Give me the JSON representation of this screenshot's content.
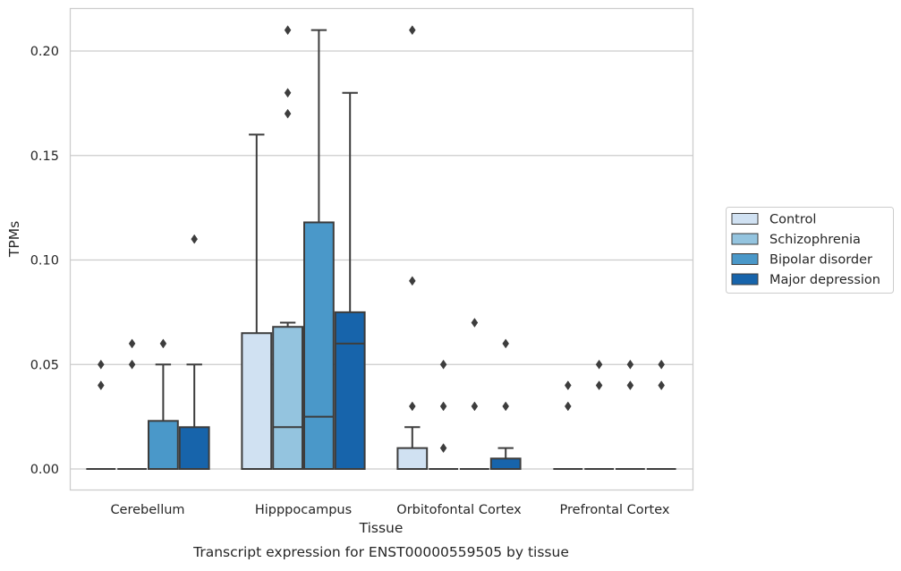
{
  "chart_data": {
    "type": "box",
    "title": "",
    "xlabel": "Tissue",
    "ylabel": "TPMs",
    "caption": "Transcript expression for ENST00000559505 by tissue",
    "ylim": [
      -0.01,
      0.22
    ],
    "yticks": [
      0.0,
      0.05,
      0.1,
      0.15,
      0.2
    ],
    "ytick_labels": [
      "0.00",
      "0.05",
      "0.10",
      "0.15",
      "0.20"
    ],
    "grid": "horizontal",
    "legend_position": "right",
    "categories": [
      "Cerebellum",
      "Hipppocampus",
      "Orbitofontal Cortex",
      "Prefrontal Cortex"
    ],
    "series": [
      {
        "name": "Control",
        "color": "#d0e1f2",
        "boxes": [
          {
            "q1": 0.0,
            "median": 0.0,
            "q3": 0.0,
            "whisker_low": 0.0,
            "whisker_high": 0.0,
            "outliers": [
              0.04,
              0.05
            ]
          },
          {
            "q1": 0.0,
            "median": 0.0,
            "q3": 0.065,
            "whisker_low": 0.0,
            "whisker_high": 0.16,
            "outliers": []
          },
          {
            "q1": 0.0,
            "median": 0.0,
            "q3": 0.01,
            "whisker_low": 0.0,
            "whisker_high": 0.02,
            "outliers": [
              0.03,
              0.09,
              0.21
            ]
          },
          {
            "q1": 0.0,
            "median": 0.0,
            "q3": 0.0,
            "whisker_low": 0.0,
            "whisker_high": 0.0,
            "outliers": [
              0.03,
              0.04
            ]
          }
        ]
      },
      {
        "name": "Schizophrenia",
        "color": "#94c4df",
        "boxes": [
          {
            "q1": 0.0,
            "median": 0.0,
            "q3": 0.0,
            "whisker_low": 0.0,
            "whisker_high": 0.0,
            "outliers": [
              0.05,
              0.06
            ]
          },
          {
            "q1": 0.0,
            "median": 0.02,
            "q3": 0.068,
            "whisker_low": 0.0,
            "whisker_high": 0.07,
            "outliers": [
              0.17,
              0.18,
              0.21
            ]
          },
          {
            "q1": 0.0,
            "median": 0.0,
            "q3": 0.0,
            "whisker_low": 0.0,
            "whisker_high": 0.0,
            "outliers": [
              0.01,
              0.03,
              0.05
            ]
          },
          {
            "q1": 0.0,
            "median": 0.0,
            "q3": 0.0,
            "whisker_low": 0.0,
            "whisker_high": 0.0,
            "outliers": [
              0.04,
              0.05
            ]
          }
        ]
      },
      {
        "name": "Bipolar disorder",
        "color": "#4a98c9",
        "boxes": [
          {
            "q1": 0.0,
            "median": 0.0,
            "q3": 0.023,
            "whisker_low": 0.0,
            "whisker_high": 0.05,
            "outliers": [
              0.06
            ]
          },
          {
            "q1": 0.0,
            "median": 0.025,
            "q3": 0.118,
            "whisker_low": 0.0,
            "whisker_high": 0.21,
            "outliers": []
          },
          {
            "q1": 0.0,
            "median": 0.0,
            "q3": 0.0,
            "whisker_low": 0.0,
            "whisker_high": 0.0,
            "outliers": [
              0.03,
              0.07
            ]
          },
          {
            "q1": 0.0,
            "median": 0.0,
            "q3": 0.0,
            "whisker_low": 0.0,
            "whisker_high": 0.0,
            "outliers": [
              0.04,
              0.05
            ]
          }
        ]
      },
      {
        "name": "Major depression",
        "color": "#1764ab",
        "boxes": [
          {
            "q1": 0.0,
            "median": 0.0,
            "q3": 0.02,
            "whisker_low": 0.0,
            "whisker_high": 0.05,
            "outliers": [
              0.11
            ]
          },
          {
            "q1": 0.0,
            "median": 0.06,
            "q3": 0.075,
            "whisker_low": 0.0,
            "whisker_high": 0.18,
            "outliers": []
          },
          {
            "q1": 0.0,
            "median": 0.0,
            "q3": 0.005,
            "whisker_low": 0.0,
            "whisker_high": 0.01,
            "outliers": [
              0.03,
              0.06
            ]
          },
          {
            "q1": 0.0,
            "median": 0.0,
            "q3": 0.0,
            "whisker_low": 0.0,
            "whisker_high": 0.0,
            "outliers": [
              0.04,
              0.05
            ]
          }
        ]
      }
    ]
  }
}
